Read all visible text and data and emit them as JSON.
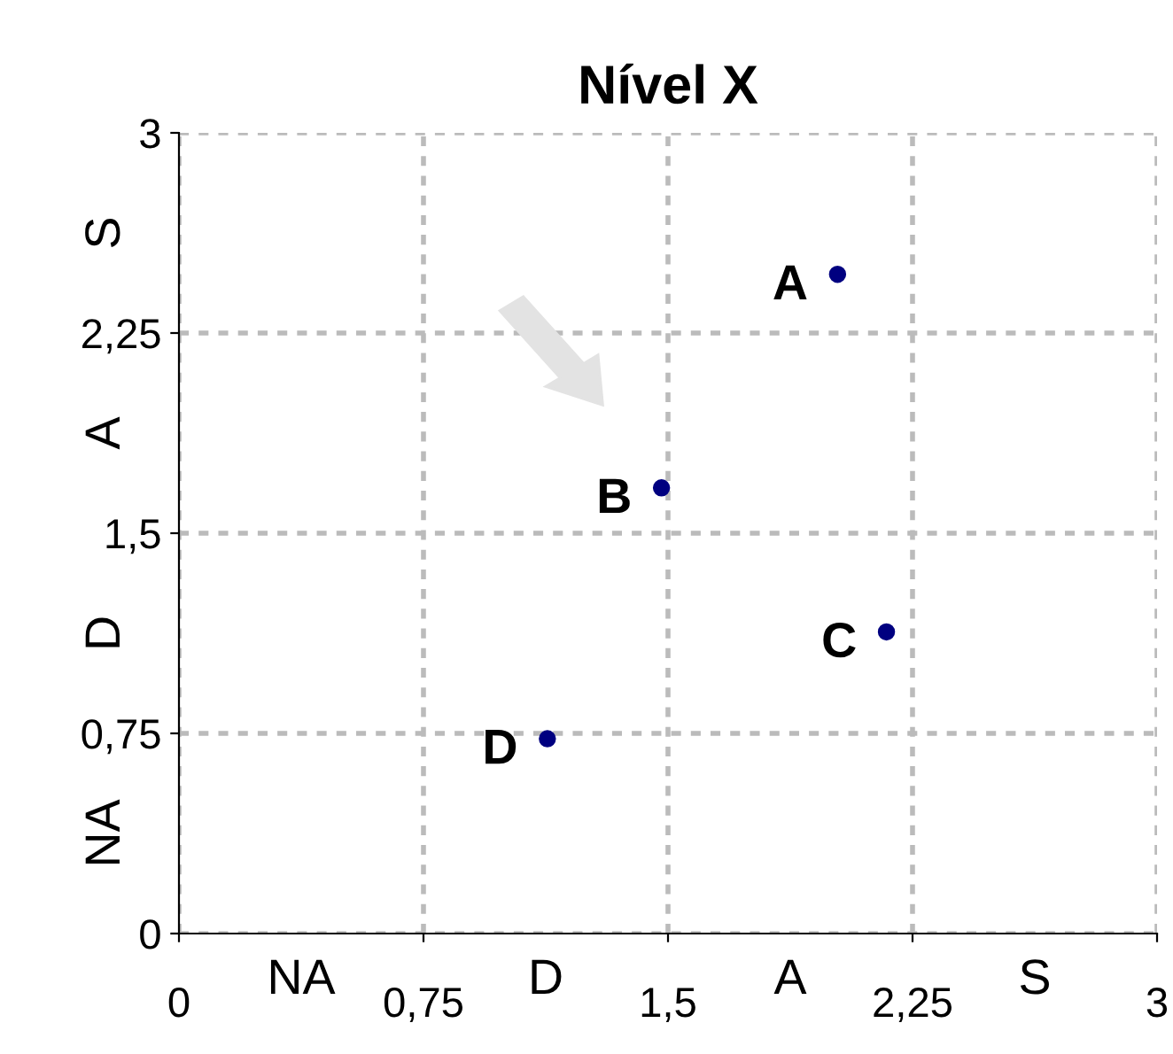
{
  "chart_data": {
    "type": "scatter",
    "title": "Nível X",
    "x": [
      2.02,
      1.48,
      2.17,
      1.13
    ],
    "values": [
      2.47,
      1.67,
      1.13,
      0.73
    ],
    "color": "#000080",
    "marker": "circle",
    "xlim": [
      0,
      3
    ],
    "ylim": [
      0,
      3
    ],
    "xticks": [
      0,
      {
        "value": 0.75,
        "label": "0,75"
      },
      {
        "value": 1.5,
        "label": "1,5"
      },
      {
        "value": 2.25,
        "label": "2,25"
      },
      3
    ],
    "yticks": [
      0,
      {
        "value": 0.75,
        "label": "0,75"
      },
      {
        "value": 1.5,
        "label": "1,5"
      },
      {
        "value": 2.25,
        "label": "2,25"
      },
      3
    ],
    "grid": true,
    "legend": false,
    "annotations": [
      "NA",
      "D",
      "A",
      "S",
      "NA",
      "D",
      "A",
      "S",
      {
        "text": "A",
        "x": 2.02,
        "y": 2.47
      },
      {
        "text": "B",
        "x": 1.48,
        "y": 1.67
      },
      {
        "text": "C",
        "x": 2.17,
        "y": 1.13
      },
      {
        "text": "D",
        "x": 1.13,
        "y": 0.73
      }
    ]
  }
}
